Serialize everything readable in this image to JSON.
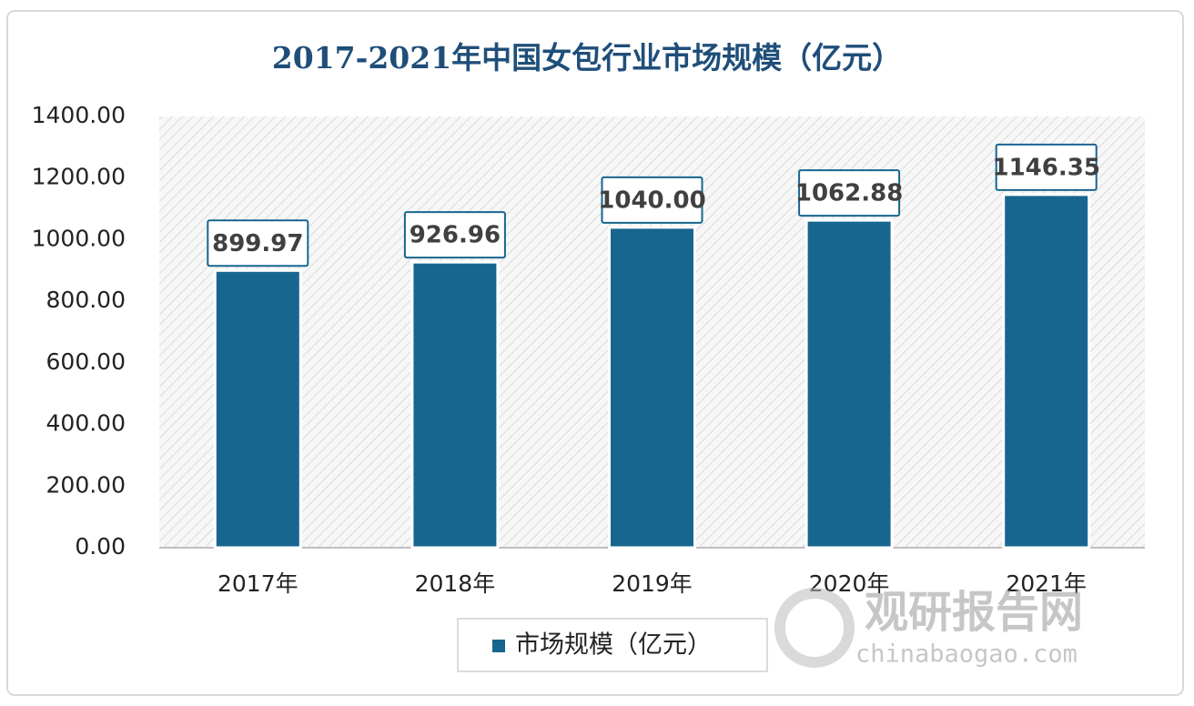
{
  "chart_data": {
    "type": "bar",
    "title": "2017-2021年中国女包行业市场规模（亿元）",
    "categories": [
      "2017年",
      "2018年",
      "2019年",
      "2020年",
      "2021年"
    ],
    "series": [
      {
        "name": "市场规模（亿元）",
        "color": "#17668f",
        "values": [
          899.97,
          926.96,
          1040.0,
          1062.88,
          1146.35
        ],
        "value_labels": [
          "899.97",
          "926.96",
          "1040.00",
          "1062.88",
          "1146.35"
        ]
      }
    ],
    "ylim": [
      0,
      1400
    ],
    "yticks": [
      {
        "value": 0,
        "label": "0.00"
      },
      {
        "value": 200,
        "label": "200.00"
      },
      {
        "value": 400,
        "label": "400.00"
      },
      {
        "value": 600,
        "label": "600.00"
      },
      {
        "value": 800,
        "label": "800.00"
      },
      {
        "value": 1000,
        "label": "1000.00"
      },
      {
        "value": 1200,
        "label": "1200.00"
      },
      {
        "value": 1400,
        "label": "1400.00"
      }
    ],
    "background_hatch": true,
    "legend": "bottom",
    "watermark": {
      "name": "观研报告网",
      "site": "chinabaogao.com"
    }
  }
}
